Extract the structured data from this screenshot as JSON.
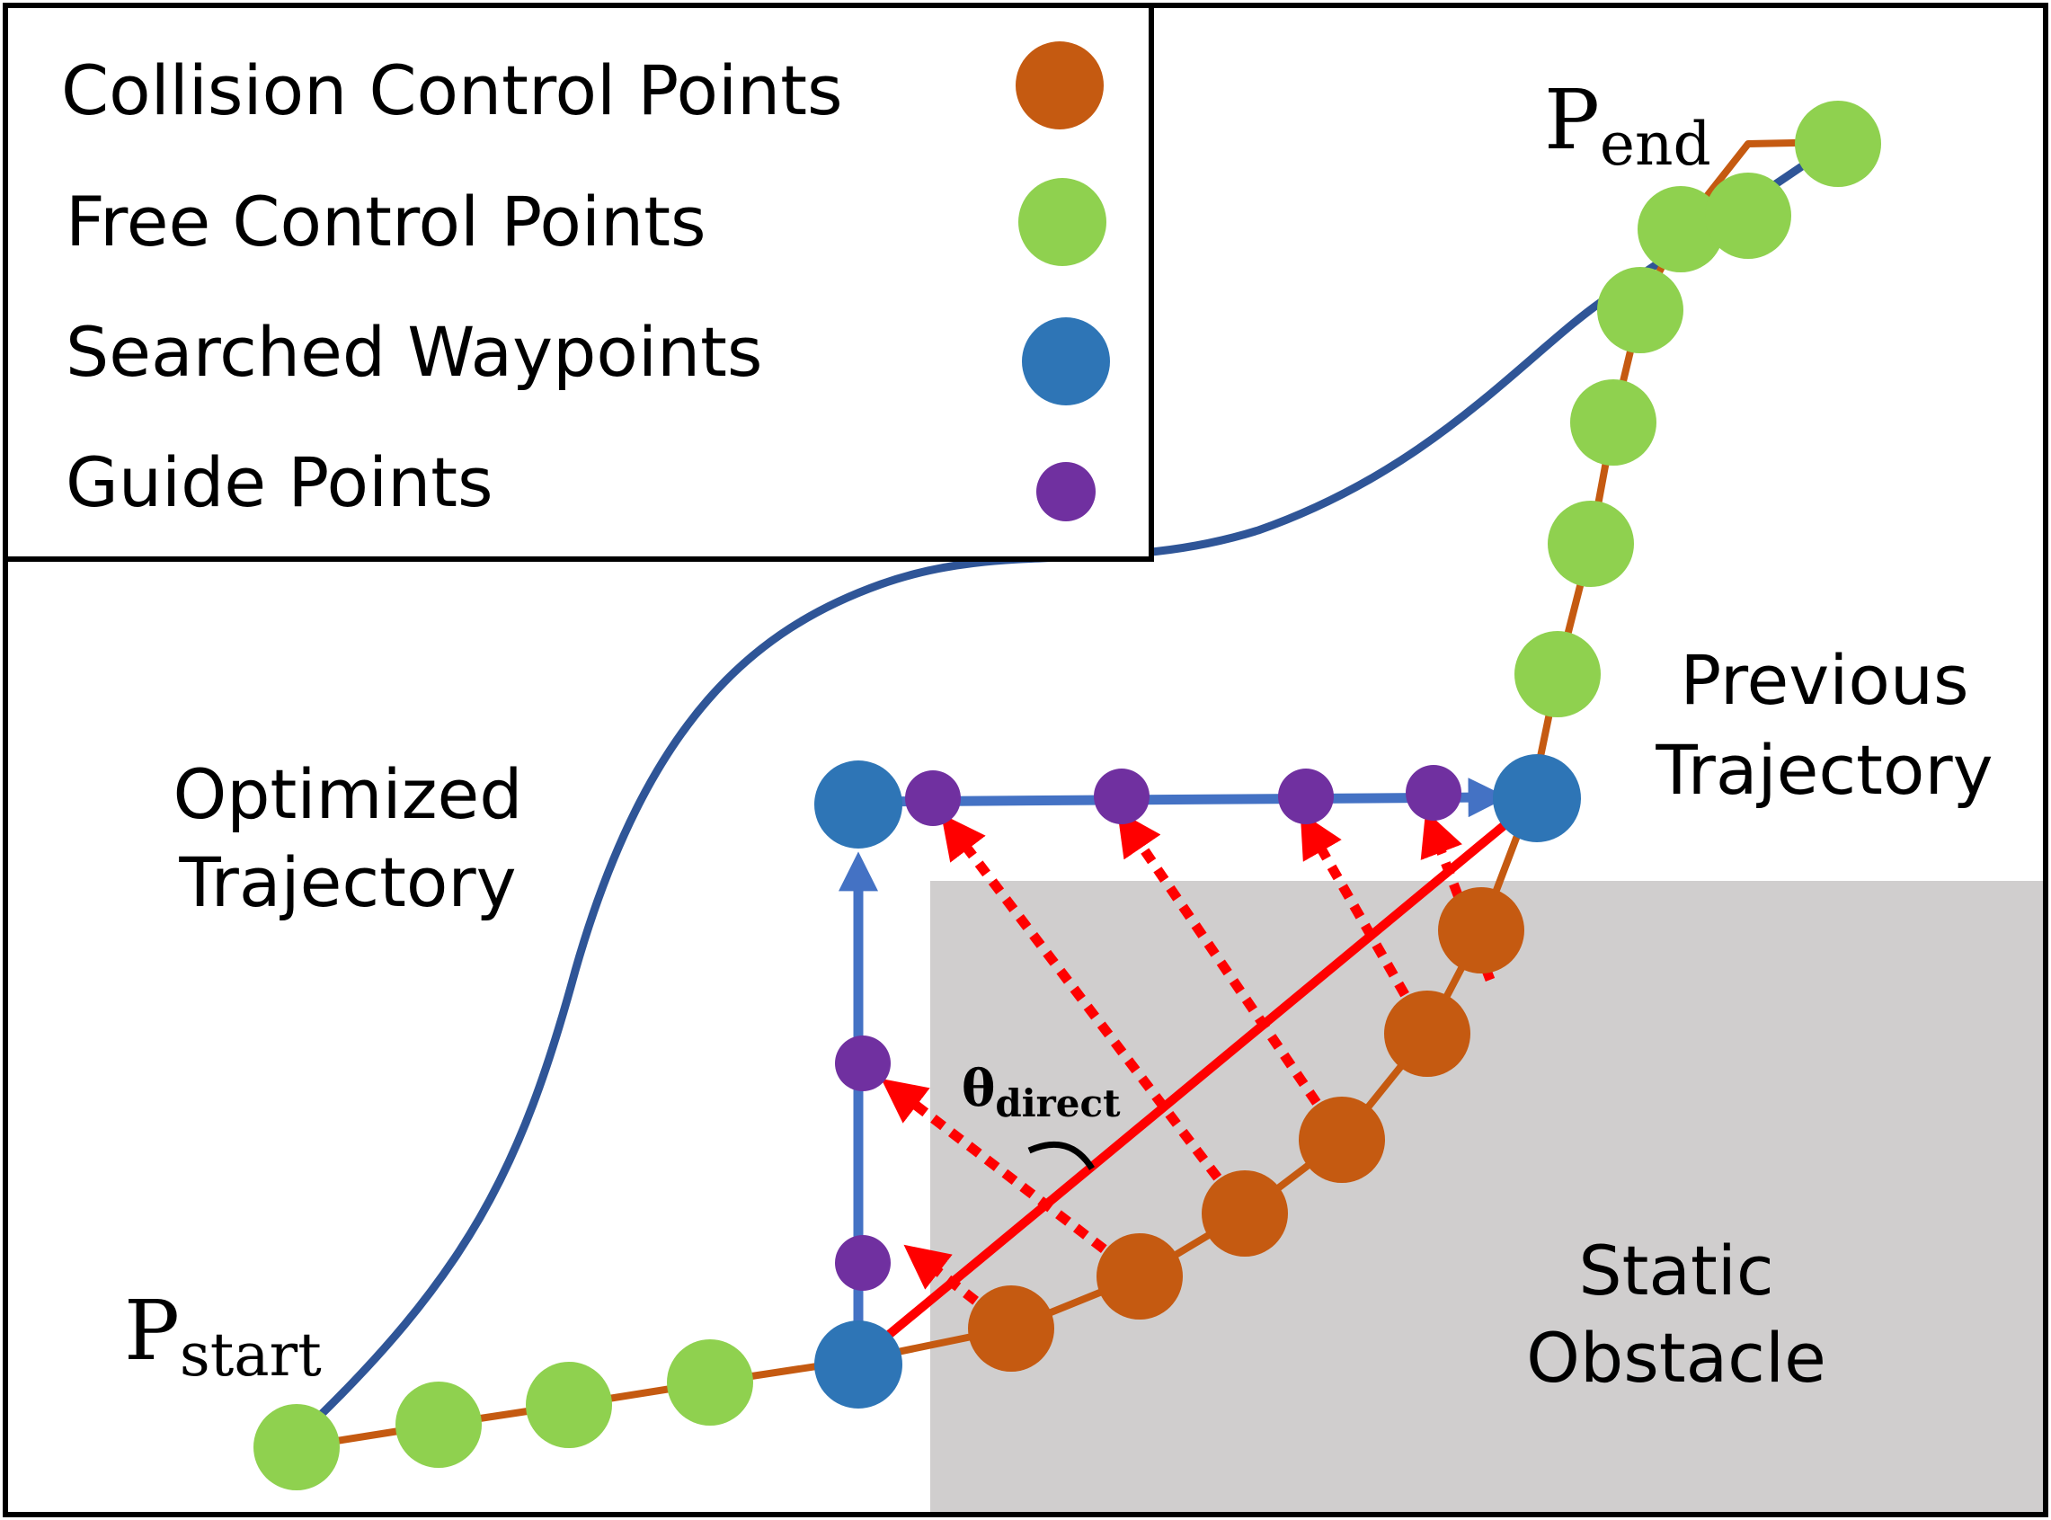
{
  "legend": {
    "items": [
      {
        "label": "Collision Control Points",
        "marker": "collision",
        "color": "#C45A12"
      },
      {
        "label": "Free Control Points",
        "marker": "free",
        "color": "#8FD14F"
      },
      {
        "label": "Searched Waypoints",
        "marker": "searched",
        "color": "#2E75B6"
      },
      {
        "label": "Guide Points",
        "marker": "guide",
        "color": "#7030A0"
      }
    ]
  },
  "labels": {
    "p_start_main": "P",
    "p_start_sub": "start",
    "p_end_main": "P",
    "p_end_sub": "end",
    "optimized_line1": "Optimized",
    "optimized_line2": "Trajectory",
    "previous_line1": "Previous",
    "previous_line2": "Trajectory",
    "static_line1": "Static",
    "static_line2": "Obstacle",
    "theta_main": "θ",
    "theta_sub": "direct"
  },
  "colors": {
    "obstacle": "#D0CECE",
    "optimized_trajectory": "#2F5597",
    "previous_trajectory": "#C55A11",
    "search_path": "#4472C4",
    "direct_line": "#FF0000",
    "guide_vectors": "#FF0000",
    "angle_arc": "#000000"
  }
}
